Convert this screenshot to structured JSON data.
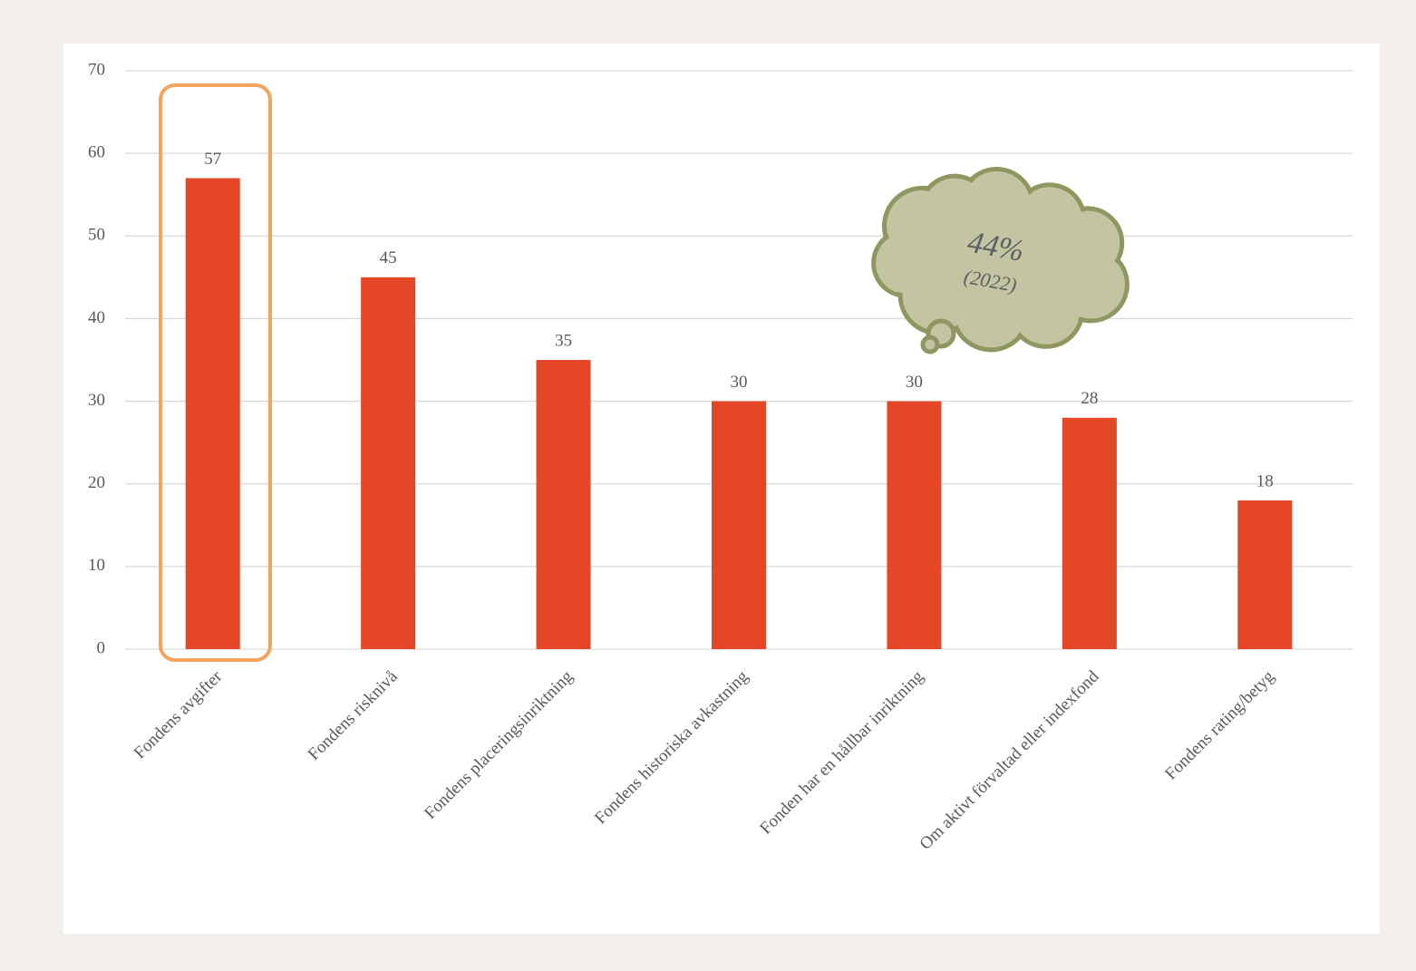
{
  "chart_data": {
    "type": "bar",
    "categories": [
      "Fondens avgifter",
      "Fondens risknivå",
      "Fondens placeringsinriktning",
      "Fondens historiska avkastning",
      "Fonden har en hållbar inriktning",
      "Om aktivt förvaltad eller indexfond",
      "Fondens rating/betyg"
    ],
    "values": [
      57,
      45,
      35,
      30,
      30,
      28,
      18
    ],
    "color": "#e64628",
    "ylim": [
      0,
      70
    ],
    "yticks": [
      0,
      10,
      20,
      30,
      40,
      50,
      60,
      70
    ],
    "grid": true,
    "annotation": {
      "text": "44%",
      "subtext": "(2022)"
    }
  }
}
